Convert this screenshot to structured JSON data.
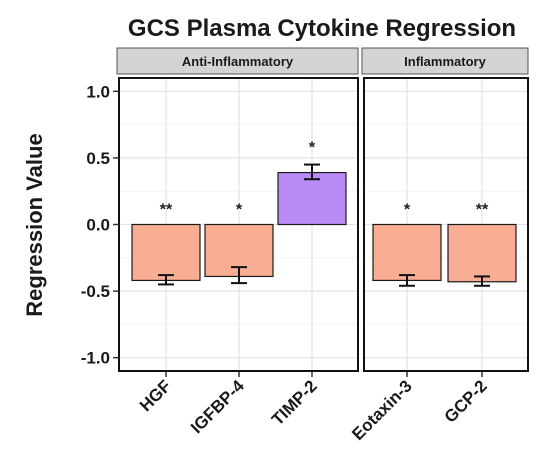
{
  "chart_data": {
    "type": "bar",
    "title": "GCS Plasma Cytokine Regression",
    "ylabel": "Regression Value",
    "xlabel": "",
    "ylim": [
      -1.1,
      1.1
    ],
    "yticks": [
      1.0,
      0.5,
      0.0,
      -0.5,
      -1.0
    ],
    "ytick_labels": [
      "1.0",
      "0.5",
      "0.0",
      "-0.5",
      "-1.0"
    ],
    "grid": true,
    "facets": [
      {
        "label": "Anti-Inflammatory",
        "categories": [
          "HGF",
          "IGFBP-4",
          "TIMP-2"
        ],
        "values": [
          -0.42,
          -0.39,
          0.39
        ],
        "err_low": [
          -0.45,
          -0.44,
          0.34
        ],
        "err_high": [
          -0.38,
          -0.32,
          0.45
        ],
        "significance": [
          "**",
          "*",
          "*"
        ],
        "colors": [
          "#f9ad92",
          "#f9ad92",
          "#b98bf7"
        ]
      },
      {
        "label": "Inflammatory",
        "categories": [
          "Eotaxin-3",
          "GCP-2"
        ],
        "values": [
          -0.42,
          -0.43
        ],
        "err_low": [
          -0.46,
          -0.46
        ],
        "err_high": [
          -0.38,
          -0.39
        ],
        "significance": [
          "*",
          "**"
        ],
        "colors": [
          "#f9ad92",
          "#f9ad92"
        ]
      }
    ]
  }
}
